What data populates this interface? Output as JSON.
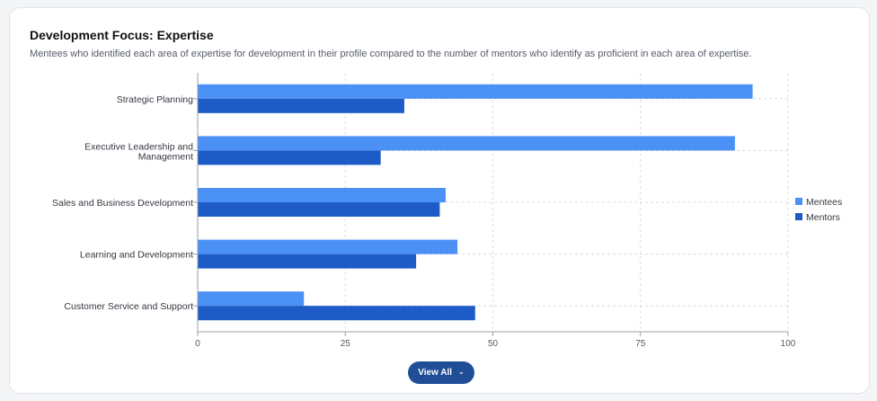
{
  "card": {
    "view_all_label": "View All",
    "view_all_icon": "chevron-down-icon"
  },
  "chart_data": {
    "type": "bar",
    "orientation": "horizontal",
    "title": "Development Focus: Expertise",
    "subtitle": "Mentees who identified each area of expertise for development in their profile compared to the number of mentors who identify as proficient in each area of expertise.",
    "categories": [
      "Strategic Planning",
      "Executive Leadership and Management",
      "Sales and Business Development",
      "Learning and Development",
      "Customer Service and Support"
    ],
    "series": [
      {
        "name": "Mentees",
        "color": "#4a90f5",
        "values": [
          94,
          91,
          42,
          44,
          18
        ]
      },
      {
        "name": "Mentors",
        "color": "#1d5cc7",
        "values": [
          35,
          31,
          41,
          37,
          47
        ]
      }
    ],
    "xlim": [
      0,
      100
    ],
    "xticks": [
      "0",
      "25",
      "50",
      "75",
      "100"
    ],
    "xlabel": "",
    "ylabel": "",
    "grid": true,
    "legend_position": "right"
  }
}
